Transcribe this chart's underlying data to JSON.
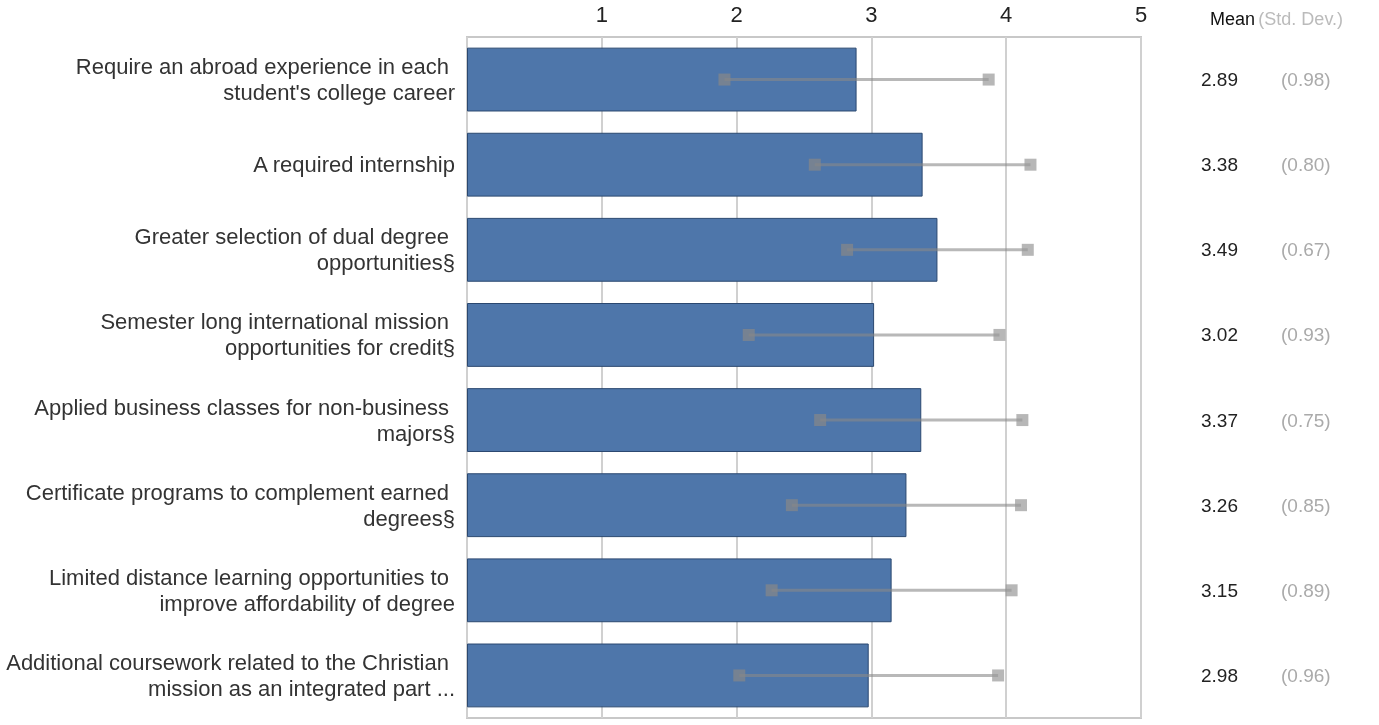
{
  "chart_data": {
    "type": "bar",
    "orientation": "horizontal",
    "categories": [
      "Require an abroad experience in each student's college career",
      "A required internship",
      "Greater selection of dual degree opportunities§",
      "Semester long international mission opportunities for credit§",
      "Applied business classes for non-business majors§",
      "Certificate programs to complement earned degrees§",
      "Limited distance learning opportunities to improve affordability of degree",
      "Additional coursework related to the Christian mission as an integrated part ..."
    ],
    "values": [
      2.89,
      3.38,
      3.49,
      3.02,
      3.37,
      3.26,
      3.15,
      2.98
    ],
    "errors": [
      0.98,
      0.8,
      0.67,
      0.93,
      0.75,
      0.85,
      0.89,
      0.96
    ],
    "value_labels": [
      "2.89 (0.98)",
      "3.38 (0.80)",
      "3.49 (0.67)",
      "3.02 (0.93)",
      "3.37 (0.75)",
      "3.26 (0.85)",
      "3.15 (0.89)",
      "2.98 (0.96)"
    ],
    "color": "#4e76aa",
    "xlim": [
      0,
      5
    ],
    "xticks": [
      {
        "value": 0,
        "label": null
      },
      1,
      2,
      3,
      4,
      5
    ],
    "grid": "x",
    "annotations": [
      "Mean",
      "(Std. Dev.)"
    ]
  }
}
